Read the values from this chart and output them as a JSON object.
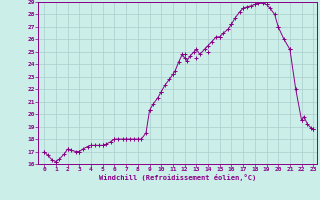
{
  "hours": [
    0,
    1,
    2,
    3,
    4,
    5,
    6,
    7,
    8,
    9,
    10,
    11,
    12,
    13,
    14,
    15,
    16,
    17,
    18,
    19,
    20,
    21,
    22,
    23
  ],
  "windchill": [
    17.0,
    16.2,
    17.2,
    17.0,
    17.5,
    17.5,
    18.0,
    18.0,
    18.0,
    20.3,
    21.8,
    23.2,
    24.8,
    24.5,
    25.0,
    26.2,
    27.2,
    28.5,
    28.8,
    28.8,
    27.0,
    25.2,
    19.5,
    18.8
  ],
  "line_color": "#880088",
  "marker": "+",
  "marker_size": 3,
  "bg_color": "#cceee8",
  "grid_color": "#aacccc",
  "xlabel": "Windchill (Refroidissement éolien,°C)",
  "ylim": [
    16,
    29
  ],
  "xlim": [
    0,
    23
  ],
  "yticks": [
    16,
    17,
    18,
    19,
    20,
    21,
    22,
    23,
    24,
    25,
    26,
    27,
    28,
    29
  ],
  "xticks": [
    0,
    1,
    2,
    3,
    4,
    5,
    6,
    7,
    8,
    9,
    10,
    11,
    12,
    13,
    14,
    15,
    16,
    17,
    18,
    19,
    20,
    21,
    22,
    23
  ],
  "hours_dense": [
    0,
    0.3,
    0.7,
    1.0,
    1.3,
    1.7,
    2.0,
    2.3,
    2.7,
    3.0,
    3.3,
    3.7,
    4.0,
    4.3,
    4.7,
    5.0,
    5.3,
    5.7,
    6.0,
    6.3,
    6.7,
    7.0,
    7.3,
    7.7,
    8.0,
    8.3,
    8.7,
    9.0,
    9.3,
    9.7,
    10.0,
    10.3,
    10.7,
    11.0,
    11.2,
    11.5,
    11.8,
    12.0,
    12.2,
    12.5,
    12.8,
    13.0,
    13.3,
    13.7,
    14.0,
    14.3,
    14.7,
    15.0,
    15.3,
    15.7,
    16.0,
    16.3,
    16.7,
    17.0,
    17.3,
    17.7,
    18.0,
    18.3,
    18.7,
    19.0,
    19.3,
    19.7,
    20.0,
    20.5,
    21.0,
    21.5,
    22.0,
    22.2,
    22.5,
    22.8,
    23.0
  ],
  "wc_dense": [
    17.0,
    16.7,
    16.3,
    16.2,
    16.4,
    16.8,
    17.2,
    17.1,
    17.0,
    17.0,
    17.2,
    17.4,
    17.5,
    17.5,
    17.5,
    17.5,
    17.6,
    17.8,
    18.0,
    18.0,
    18.0,
    18.0,
    18.0,
    18.0,
    18.0,
    18.0,
    18.5,
    20.3,
    20.8,
    21.3,
    21.8,
    22.3,
    22.8,
    23.2,
    23.5,
    24.2,
    24.8,
    24.5,
    24.3,
    24.7,
    25.0,
    25.2,
    24.8,
    25.2,
    25.5,
    25.8,
    26.2,
    26.2,
    26.5,
    26.8,
    27.2,
    27.7,
    28.2,
    28.5,
    28.6,
    28.7,
    28.8,
    28.9,
    28.9,
    28.8,
    28.5,
    28.0,
    27.0,
    26.0,
    25.2,
    22.0,
    19.5,
    19.8,
    19.2,
    18.9,
    18.8
  ]
}
